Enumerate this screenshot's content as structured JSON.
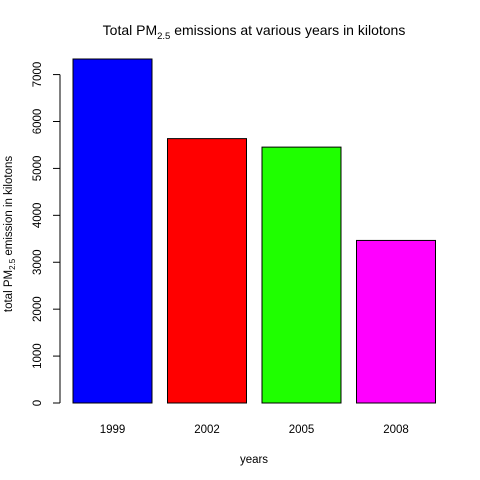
{
  "chart_data": {
    "type": "bar",
    "title": {
      "prefix": "Total PM",
      "subscript": "2.5",
      "suffix": " emissions at various years in kilotons"
    },
    "xlabel": "years",
    "ylabel": {
      "prefix": "total PM",
      "subscript": "2.5",
      "suffix": " emission in kilotons"
    },
    "categories": [
      "1999",
      "2002",
      "2005",
      "2008"
    ],
    "values": [
      7332,
      5635,
      5454,
      3465
    ],
    "colors": [
      "#0000FF",
      "#FF0000",
      "#1FFF00",
      "#FF00FF"
    ],
    "ylim": [
      0,
      7332
    ],
    "yticks": [
      "0",
      "1000",
      "2000",
      "3000",
      "4000",
      "5000",
      "6000",
      "7000"
    ],
    "grid": false,
    "legend": "none"
  }
}
